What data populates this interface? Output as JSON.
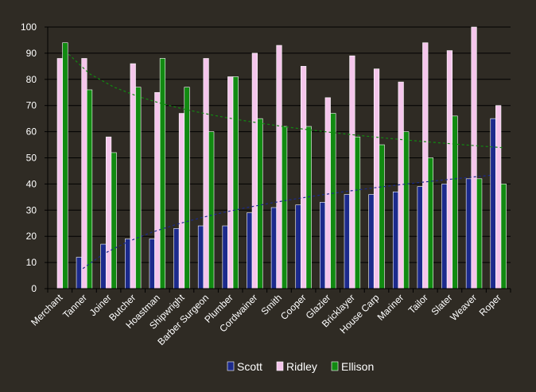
{
  "chart_data": {
    "type": "bar",
    "title": "",
    "xlabel": "",
    "ylabel": "",
    "ylim": [
      0,
      100
    ],
    "yticks": [
      0,
      10,
      20,
      30,
      40,
      50,
      60,
      70,
      80,
      90,
      100
    ],
    "grid": "horizontal",
    "legend_position": "bottom",
    "categories": [
      "Merchant",
      "Tanner",
      "Joiner",
      "Butcher",
      "Hoastman",
      "Shipwright",
      "Barber Surgeon",
      "Plumber",
      "Cordwainer",
      "Smith",
      "Cooper",
      "Glazier",
      "Bricklayer",
      "House Carp",
      "Mariner",
      "Tailor",
      "Slater",
      "Weaver",
      "Roper"
    ],
    "series": [
      {
        "name": "Scott",
        "color": "#1c2a8c",
        "values": [
          null,
          12,
          17,
          19,
          19,
          23,
          24,
          24,
          29,
          31,
          32,
          33,
          36,
          36,
          37,
          39,
          40,
          42,
          65
        ]
      },
      {
        "name": "Ridley",
        "color": "#f5c6ec",
        "values": [
          88,
          88,
          58,
          86,
          75,
          67,
          88,
          81,
          90,
          93,
          85,
          73,
          89,
          84,
          79,
          94,
          91,
          100,
          70
        ]
      },
      {
        "name": "Ellison",
        "color": "#118a11",
        "values": [
          94,
          76,
          52,
          77,
          88,
          77,
          60,
          81,
          65,
          62,
          62,
          67,
          58,
          55,
          60,
          50,
          66,
          42,
          40
        ]
      }
    ],
    "trendlines": [
      {
        "series": "Scott",
        "style": "dashed",
        "color": "#1c2a8c"
      },
      {
        "series": "Ellison",
        "style": "dashed",
        "color": "#118a11"
      }
    ]
  }
}
